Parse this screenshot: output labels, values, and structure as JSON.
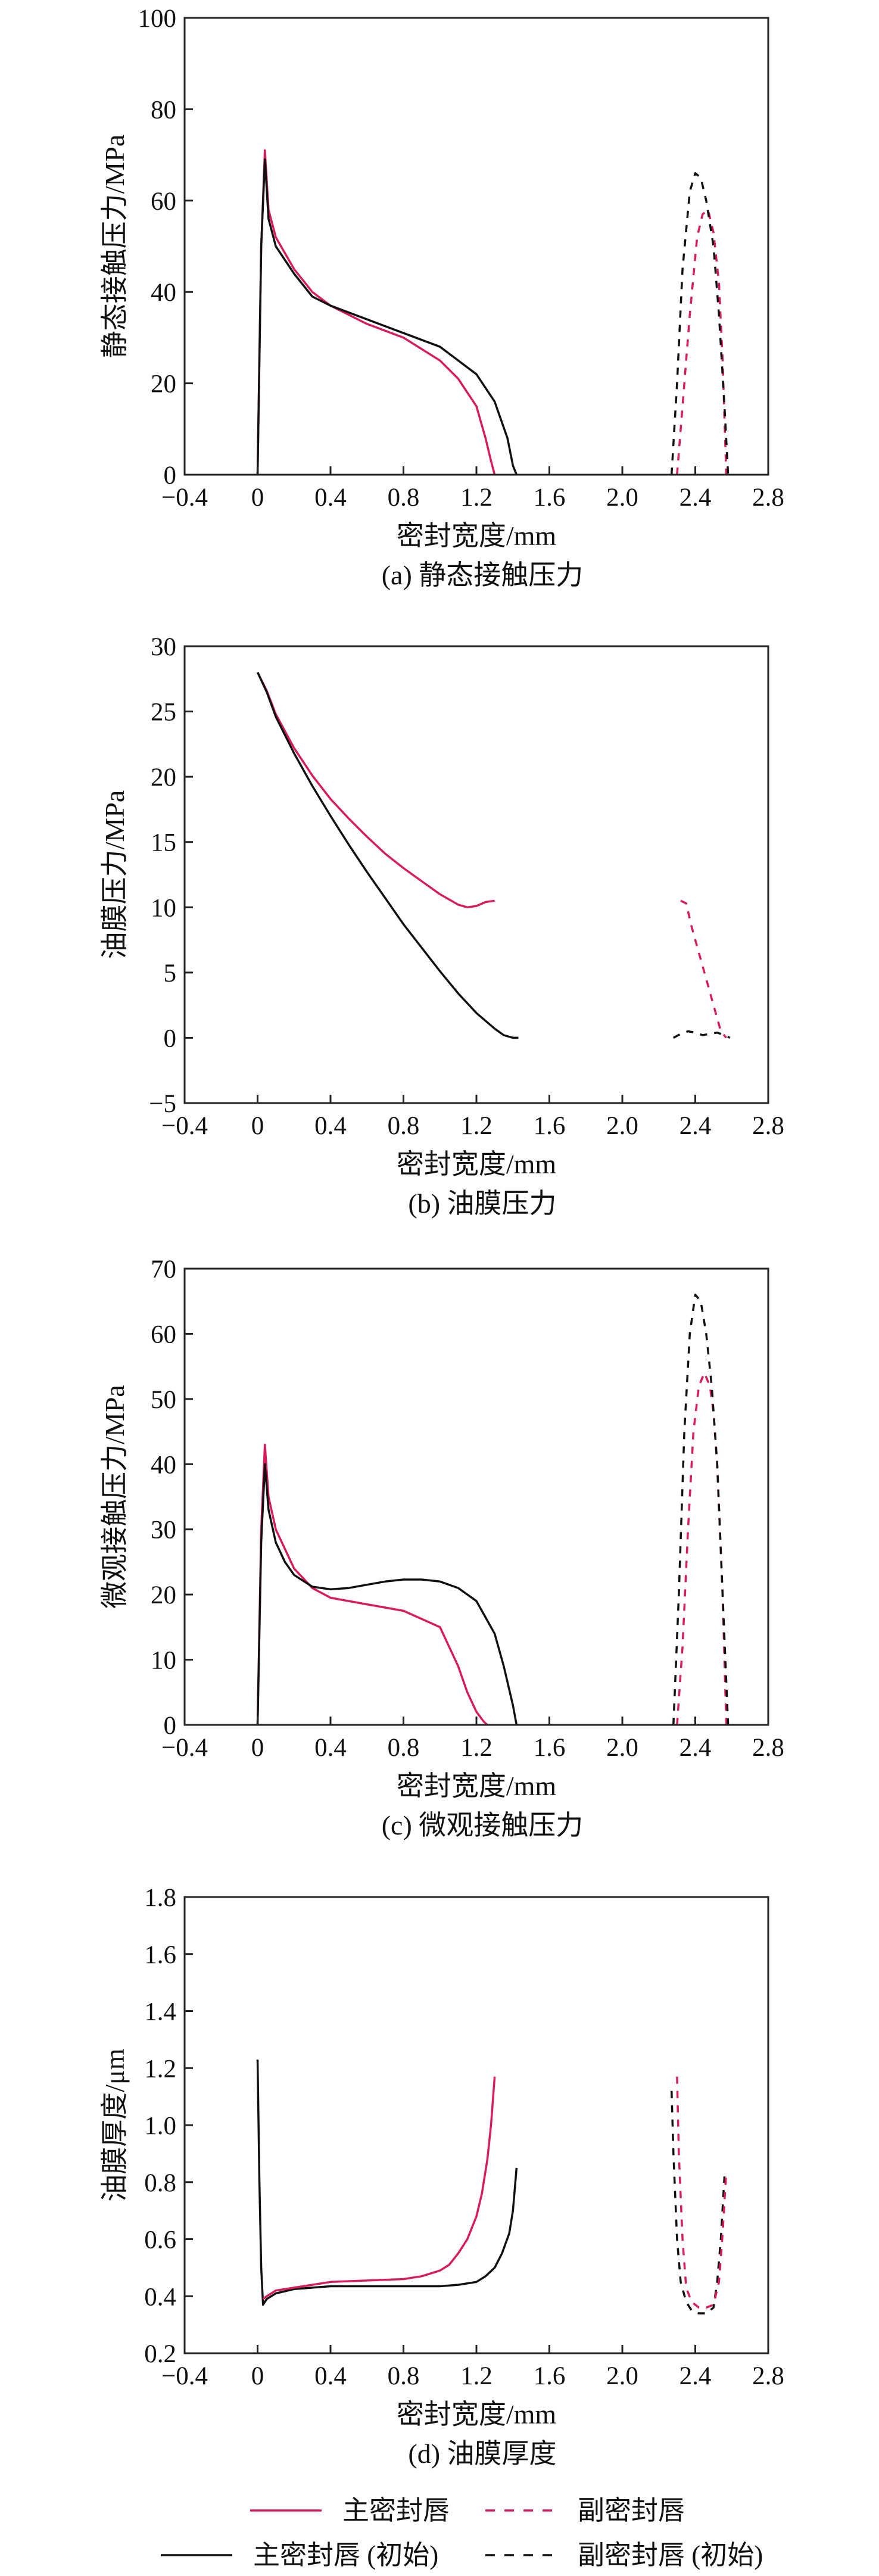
{
  "colors": {
    "primary": "#d81c5a",
    "initial": "#111111",
    "axis": "#222222"
  },
  "legend": {
    "items": [
      {
        "label": "主密封唇",
        "color": "#d81c5a",
        "dash": false
      },
      {
        "label": "副密封唇",
        "color": "#d81c5a",
        "dash": true
      },
      {
        "label": "主密封唇 (初始)",
        "color": "#111111",
        "dash": false
      },
      {
        "label": "副密封唇 (初始)",
        "color": "#111111",
        "dash": true
      }
    ]
  },
  "chart_data": [
    {
      "type": "line",
      "caption": "(a) 静态接触压力",
      "xlabel": "密封宽度/mm",
      "ylabel": "静态接触压力/MPa",
      "xlim": [
        -0.4,
        2.8
      ],
      "ylim": [
        0,
        100
      ],
      "xticks": [
        "−0.4",
        "0",
        "0.4",
        "0.8",
        "1.2",
        "1.6",
        "2.0",
        "2.4",
        "2.8"
      ],
      "yticks": [
        "0",
        "20",
        "40",
        "60",
        "80",
        "100"
      ],
      "series": [
        {
          "legend": "主密封唇",
          "color": "#d81c5a",
          "dash": false,
          "x": [
            0.0,
            0.02,
            0.04,
            0.06,
            0.1,
            0.2,
            0.3,
            0.4,
            0.6,
            0.8,
            1.0,
            1.1,
            1.2,
            1.25,
            1.28,
            1.3
          ],
          "y": [
            0,
            50,
            71,
            58,
            52,
            45,
            40,
            37,
            33,
            30,
            25,
            21,
            15,
            8,
            3,
            0
          ]
        },
        {
          "legend": "主密封唇 (初始)",
          "color": "#111111",
          "dash": false,
          "x": [
            0.0,
            0.02,
            0.04,
            0.06,
            0.1,
            0.2,
            0.3,
            0.4,
            0.6,
            0.8,
            1.0,
            1.2,
            1.3,
            1.37,
            1.4,
            1.42
          ],
          "y": [
            0,
            50,
            69,
            56,
            50,
            44,
            39,
            37,
            34,
            31,
            28,
            22,
            16,
            8,
            2,
            0
          ]
        },
        {
          "legend": "副密封唇",
          "color": "#d81c5a",
          "dash": true,
          "x": [
            2.3,
            2.33,
            2.37,
            2.41,
            2.44,
            2.47,
            2.5,
            2.53,
            2.55,
            2.57
          ],
          "y": [
            0,
            15,
            35,
            52,
            57,
            58,
            53,
            42,
            25,
            0
          ]
        },
        {
          "legend": "副密封唇 (初始)",
          "color": "#111111",
          "dash": true,
          "x": [
            2.27,
            2.3,
            2.33,
            2.37,
            2.4,
            2.43,
            2.46,
            2.5,
            2.53,
            2.56,
            2.58
          ],
          "y": [
            0,
            20,
            45,
            62,
            66,
            65,
            60,
            50,
            35,
            15,
            0
          ]
        }
      ]
    },
    {
      "type": "line",
      "caption": "(b) 油膜压力",
      "xlabel": "密封宽度/mm",
      "ylabel": "油膜压力/MPa",
      "xlim": [
        -0.4,
        2.8
      ],
      "ylim": [
        -5,
        30
      ],
      "xticks": [
        "−0.4",
        "0",
        "0.4",
        "0.8",
        "1.2",
        "1.6",
        "2.0",
        "2.4",
        "2.8"
      ],
      "yticks": [
        "−5",
        "0",
        "5",
        "10",
        "15",
        "20",
        "25",
        "30"
      ],
      "series": [
        {
          "legend": "主密封唇",
          "color": "#d81c5a",
          "dash": false,
          "x": [
            0.0,
            0.05,
            0.1,
            0.2,
            0.3,
            0.4,
            0.5,
            0.6,
            0.7,
            0.8,
            0.9,
            1.0,
            1.1,
            1.15,
            1.2,
            1.25,
            1.3
          ],
          "y": [
            28,
            26.6,
            24.8,
            22.2,
            20.1,
            18.3,
            16.8,
            15.4,
            14.1,
            13.0,
            12.0,
            11.0,
            10.2,
            10.0,
            10.1,
            10.4,
            10.5
          ]
        },
        {
          "legend": "主密封唇 (初始)",
          "color": "#111111",
          "dash": false,
          "x": [
            0.0,
            0.05,
            0.1,
            0.2,
            0.3,
            0.4,
            0.5,
            0.6,
            0.7,
            0.8,
            0.9,
            1.0,
            1.1,
            1.2,
            1.3,
            1.35,
            1.4,
            1.43
          ],
          "y": [
            28,
            26.5,
            24.6,
            21.8,
            19.3,
            17.0,
            14.8,
            12.7,
            10.7,
            8.7,
            6.9,
            5.1,
            3.4,
            1.9,
            0.7,
            0.2,
            0.0,
            0.0
          ]
        },
        {
          "legend": "副密封唇",
          "color": "#d81c5a",
          "dash": true,
          "x": [
            2.32,
            2.35,
            2.38,
            2.42,
            2.46,
            2.5,
            2.54,
            2.57
          ],
          "y": [
            10.5,
            10.3,
            8.5,
            6.5,
            4.5,
            2.5,
            0.5,
            0
          ]
        },
        {
          "legend": "副密封唇 (初始)",
          "color": "#111111",
          "dash": true,
          "x": [
            2.28,
            2.32,
            2.36,
            2.4,
            2.44,
            2.48,
            2.52,
            2.56,
            2.59
          ],
          "y": [
            0,
            0.3,
            0.5,
            0.4,
            0.2,
            0.3,
            0.4,
            0.2,
            0
          ]
        }
      ]
    },
    {
      "type": "line",
      "caption": "(c) 微观接触压力",
      "xlabel": "密封宽度/mm",
      "ylabel": "微观接触压力/MPa",
      "xlim": [
        -0.4,
        2.8
      ],
      "ylim": [
        0,
        70
      ],
      "xticks": [
        "−0.4",
        "0",
        "0.4",
        "0.8",
        "1.2",
        "1.6",
        "2.0",
        "2.4",
        "2.8"
      ],
      "yticks": [
        "0",
        "10",
        "20",
        "30",
        "40",
        "50",
        "60",
        "70"
      ],
      "series": [
        {
          "legend": "主密封唇",
          "color": "#d81c5a",
          "dash": false,
          "x": [
            0.0,
            0.02,
            0.04,
            0.06,
            0.1,
            0.15,
            0.2,
            0.3,
            0.4,
            0.6,
            0.8,
            1.0,
            1.1,
            1.15,
            1.2,
            1.24,
            1.26
          ],
          "y": [
            0,
            30,
            43,
            35,
            30,
            27,
            24,
            21,
            19.5,
            18.5,
            17.5,
            15,
            9,
            5,
            2,
            0.5,
            0
          ]
        },
        {
          "legend": "主密封唇 (初始)",
          "color": "#111111",
          "dash": false,
          "x": [
            0.0,
            0.02,
            0.04,
            0.06,
            0.1,
            0.15,
            0.2,
            0.3,
            0.4,
            0.5,
            0.6,
            0.7,
            0.8,
            0.9,
            1.0,
            1.1,
            1.2,
            1.3,
            1.35,
            1.4,
            1.42
          ],
          "y": [
            0,
            28,
            40,
            33,
            28,
            25,
            23,
            21.2,
            20.8,
            21,
            21.5,
            22,
            22.3,
            22.3,
            22,
            21,
            19,
            14,
            9,
            3,
            0
          ]
        },
        {
          "legend": "副密封唇",
          "color": "#d81c5a",
          "dash": true,
          "x": [
            2.3,
            2.33,
            2.36,
            2.39,
            2.42,
            2.45,
            2.48,
            2.5,
            2.52,
            2.55,
            2.57
          ],
          "y": [
            0,
            12,
            30,
            45,
            52,
            54,
            52,
            48,
            40,
            20,
            0
          ]
        },
        {
          "legend": "副密封唇 (初始)",
          "color": "#111111",
          "dash": true,
          "x": [
            2.28,
            2.31,
            2.34,
            2.37,
            2.4,
            2.43,
            2.46,
            2.49,
            2.52,
            2.55,
            2.58
          ],
          "y": [
            0,
            20,
            45,
            60,
            66,
            65,
            60,
            52,
            40,
            20,
            0
          ]
        }
      ]
    },
    {
      "type": "line",
      "caption": "(d) 油膜厚度",
      "xlabel": "密封宽度/mm",
      "ylabel": "油膜厚度/μm",
      "xlim": [
        -0.4,
        2.8
      ],
      "ylim": [
        0.2,
        1.8
      ],
      "xticks": [
        "−0.4",
        "0",
        "0.4",
        "0.8",
        "1.2",
        "1.6",
        "2.0",
        "2.4",
        "2.8"
      ],
      "yticks": [
        "0.2",
        "0.4",
        "0.6",
        "0.8",
        "1.0",
        "1.2",
        "1.4",
        "1.6",
        "1.8"
      ],
      "series": [
        {
          "legend": "主密封唇 (初始)",
          "color": "#111111",
          "dash": false,
          "x": [
            0.0,
            0.01,
            0.02,
            0.03,
            0.05,
            0.1,
            0.2,
            0.3,
            0.4,
            0.6,
            0.8,
            1.0,
            1.1,
            1.2,
            1.25,
            1.3,
            1.34,
            1.38,
            1.4,
            1.42
          ],
          "y": [
            1.23,
            0.8,
            0.5,
            0.37,
            0.39,
            0.41,
            0.425,
            0.43,
            0.435,
            0.435,
            0.435,
            0.435,
            0.44,
            0.45,
            0.47,
            0.5,
            0.55,
            0.62,
            0.7,
            0.85
          ]
        },
        {
          "legend": "主密封唇",
          "color": "#d81c5a",
          "dash": false,
          "x": [
            0.03,
            0.05,
            0.1,
            0.2,
            0.3,
            0.4,
            0.6,
            0.8,
            0.9,
            1.0,
            1.05,
            1.1,
            1.15,
            1.2,
            1.23,
            1.26,
            1.28,
            1.3
          ],
          "y": [
            0.39,
            0.4,
            0.42,
            0.43,
            0.44,
            0.45,
            0.455,
            0.46,
            0.47,
            0.49,
            0.51,
            0.55,
            0.6,
            0.68,
            0.76,
            0.88,
            1.0,
            1.17
          ]
        },
        {
          "legend": "副密封唇 (初始)",
          "color": "#111111",
          "dash": true,
          "x": [
            2.27,
            2.28,
            2.3,
            2.32,
            2.35,
            2.38,
            2.42,
            2.46,
            2.5,
            2.52,
            2.54,
            2.56
          ],
          "y": [
            1.12,
            0.9,
            0.6,
            0.45,
            0.38,
            0.35,
            0.34,
            0.34,
            0.36,
            0.45,
            0.6,
            0.82
          ]
        },
        {
          "legend": "副密封唇",
          "color": "#d81c5a",
          "dash": true,
          "x": [
            2.3,
            2.31,
            2.33,
            2.35,
            2.38,
            2.42,
            2.46,
            2.5,
            2.53,
            2.55,
            2.57
          ],
          "y": [
            1.17,
            0.9,
            0.6,
            0.43,
            0.38,
            0.36,
            0.36,
            0.37,
            0.45,
            0.62,
            0.84
          ]
        }
      ]
    }
  ]
}
